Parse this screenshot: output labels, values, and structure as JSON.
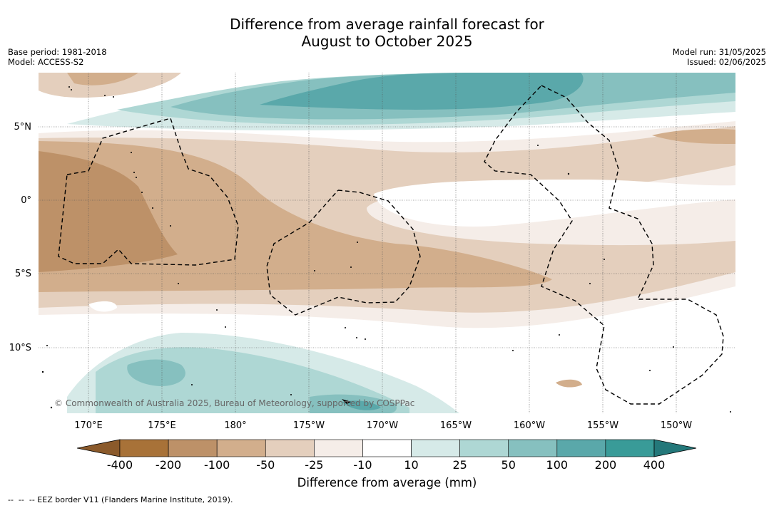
{
  "title_line1": "Difference from average rainfall forecast for",
  "title_line2": "August to October 2025",
  "meta_left": {
    "base_period": "Base period: 1981-2018",
    "model": "Model: ACCESS-S2"
  },
  "meta_right": {
    "model_run": "Model run: 31/05/2025",
    "issued": "Issued: 02/06/2025"
  },
  "copyright": "© Commonwealth of Australia 2025, Bureau of Meteorology, supported by COSPPac",
  "lon_labels": [
    "170°E",
    "175°E",
    "180°",
    "175°W",
    "170°W",
    "165°W",
    "160°W",
    "155°W",
    "150°W"
  ],
  "lat_labels": [
    "5°N",
    "0°",
    "5°S",
    "10°S"
  ],
  "colorbar": {
    "ticks": [
      "-400",
      "-200",
      "-100",
      "-50",
      "-25",
      "-10",
      "10",
      "25",
      "50",
      "100",
      "200",
      "400"
    ],
    "colors": [
      "#a87238",
      "#bd9168",
      "#d2ae8c",
      "#e4cfbd",
      "#f5ede8",
      "#ffffff",
      "#d6eae8",
      "#aed7d4",
      "#86c0bf",
      "#5aa8aa",
      "#399b98"
    ],
    "extend_low": "#8b5a2b",
    "extend_high": "#24787a",
    "title": "Difference from average (mm)"
  },
  "legend_text": "--  --  -- EEZ border V11 (Flanders Marine Institute, 2019)."
}
